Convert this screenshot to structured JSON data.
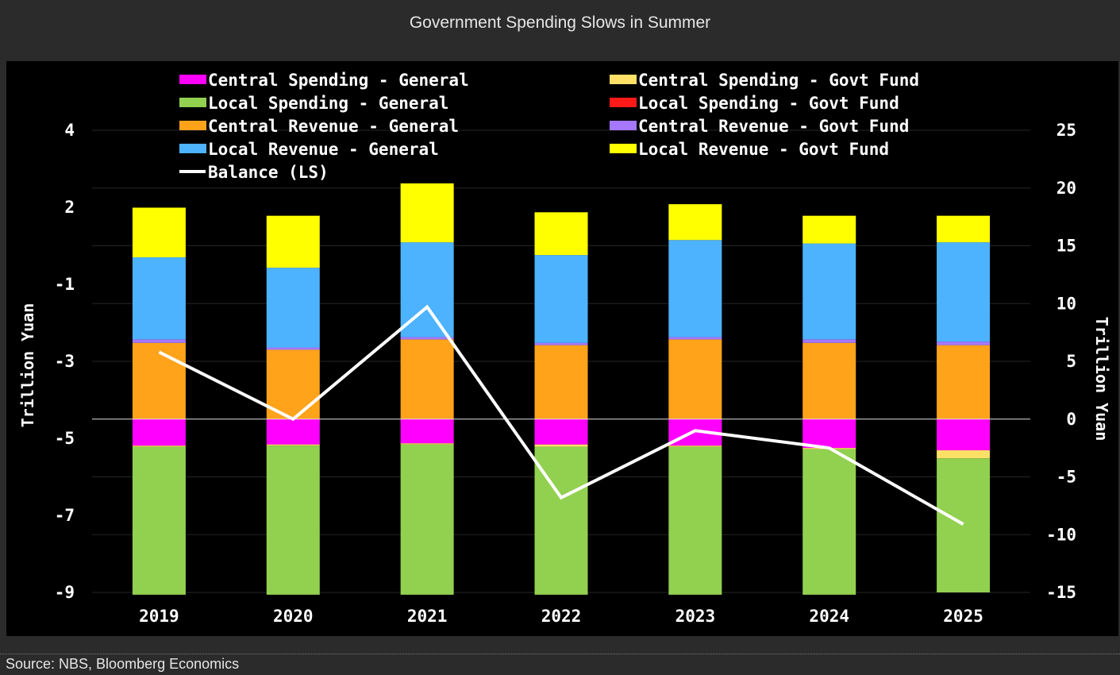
{
  "header": {
    "title": "Government Spending Slows in Summer"
  },
  "footer": {
    "source": "Source: NBS, Bloomberg Economics"
  },
  "chart_data": {
    "type": "bar",
    "stacked": true,
    "categories": [
      "2019",
      "2020",
      "2021",
      "2022",
      "2023",
      "2024",
      "2025"
    ],
    "ylabel_left": "Trillion Yuan",
    "ylabel_right": "Trillion Yuan",
    "left_ticks": [
      "4",
      "2",
      "-1",
      "-3",
      "-5",
      "-7",
      "-9"
    ],
    "right_ticks": [
      "25",
      "20",
      "15",
      "10",
      "5",
      "0",
      "-5",
      "-10",
      "-15"
    ],
    "right_axis_range": [
      -15,
      25
    ],
    "bar_series": [
      {
        "name": "Central Spending - General",
        "color": "#ff00ff",
        "values": [
          -2.3,
          -2.2,
          -2.1,
          -2.2,
          -2.3,
          -2.5,
          -2.7
        ]
      },
      {
        "name": "Central Spending - Govt Fund",
        "color": "#ffe066",
        "values": [
          -0.1,
          -0.1,
          -0.1,
          -0.2,
          -0.1,
          -0.1,
          -0.7
        ]
      },
      {
        "name": "Local Spending - General",
        "color": "#92d050",
        "values": [
          -12.8,
          -12.9,
          -13.0,
          -12.8,
          -12.8,
          -12.6,
          -11.6
        ]
      },
      {
        "name": "Local Spending - Govt Fund",
        "color": "#ff1a1a",
        "values": [
          0,
          0,
          0,
          0,
          0,
          0,
          0
        ]
      },
      {
        "name": "Central Revenue - General",
        "color": "#ffa31a",
        "values": [
          6.6,
          6.0,
          6.9,
          6.4,
          6.9,
          6.6,
          6.4
        ]
      },
      {
        "name": "Central Revenue - Govt Fund",
        "color": "#a578ff",
        "values": [
          0.3,
          0.2,
          0.2,
          0.2,
          0.2,
          0.3,
          0.3
        ]
      },
      {
        "name": "Local Revenue - General",
        "color": "#4db3ff",
        "values": [
          7.1,
          6.9,
          8.2,
          7.6,
          8.4,
          8.3,
          8.6
        ]
      },
      {
        "name": "Local Revenue - Govt Fund",
        "color": "#ffff00",
        "values": [
          4.3,
          4.5,
          5.1,
          3.7,
          3.1,
          2.4,
          2.3
        ]
      }
    ],
    "line_series": {
      "name": "Balance (LS)",
      "color": "#ffffff",
      "values": [
        5.8,
        0.0,
        9.7,
        -6.8,
        -1.0,
        -2.5,
        -9.1
      ]
    },
    "legend_layout": [
      [
        "Central Spending - General",
        "Central Spending - Govt Fund"
      ],
      [
        "Local Spending - General",
        "Local Spending - Govt Fund"
      ],
      [
        "Central Revenue - General",
        "Central Revenue - Govt Fund"
      ],
      [
        "Local Revenue - General",
        "Local Revenue - Govt Fund"
      ],
      [
        "Balance (LS)"
      ]
    ]
  }
}
